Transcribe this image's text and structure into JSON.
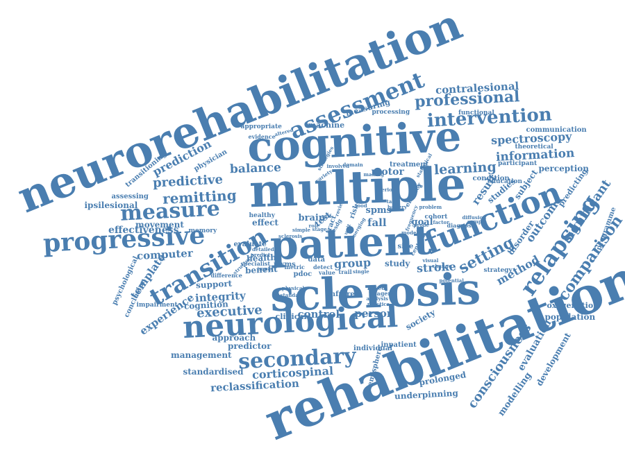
{
  "theme": {
    "word_color": "#4a7eb0",
    "background": "#ffffff"
  },
  "words": [
    "neurorehabilitation",
    "rehabilitation",
    "multiple",
    "sclerosis",
    "patient",
    "cognitive",
    "neurological",
    "function",
    "progressive",
    "transition",
    "secondary",
    "measure",
    "assessment",
    "intervention",
    "professional",
    "relapsing",
    "setting",
    "remitting",
    "predictive",
    "balance",
    "prediction",
    "learning",
    "information",
    "spectroscopy",
    "contralesional",
    "corticospinal",
    "reclassification",
    "executive",
    "group",
    "stroke",
    "comparison",
    "significant",
    "outcome",
    "result",
    "method",
    "consciousness",
    "evaluation",
    "development",
    "modelling",
    "population",
    "oxygenation",
    "experience",
    "template",
    "computer",
    "integrity",
    "support",
    "cognition",
    "health",
    "benefit",
    "effectiveness",
    "movement",
    "memory",
    "ipsilesional",
    "assessing",
    "transitioning",
    "physician",
    "machine",
    "measuring",
    "processing",
    "motor",
    "treatment",
    "brain",
    "study",
    "control",
    "person",
    "predictor",
    "approach",
    "management",
    "standardised",
    "individual",
    "inpatient",
    "prolonged",
    "underpinning",
    "society",
    "hemisphere",
    "perception",
    "communication",
    "functional",
    "theoretical",
    "participant",
    "education",
    "condition",
    "disorder",
    "studies",
    "subject",
    "predicting",
    "programme",
    "strategy",
    "psychological",
    "conclusion",
    "impairment",
    "evaluate",
    "specialist",
    "difference",
    "pwms",
    "metric",
    "data",
    "detect",
    "pdoc",
    "value",
    "trail",
    "infrared",
    "imagery",
    "based",
    "goal",
    "spms",
    "fall",
    "side",
    "clinical",
    "test",
    "effect",
    "healthy",
    "appropriate",
    "evidence",
    "tract",
    "risk",
    "review",
    "visual",
    "centred",
    "efficacy",
    "diagnosis",
    "cohort",
    "probe",
    "factor",
    "potential",
    "physical",
    "standard",
    "practice",
    "analysis",
    "single",
    "change",
    "structural",
    "variety",
    "making",
    "involved",
    "domain",
    "strategies",
    "statistical",
    "altered",
    "self",
    "unit",
    "esdg",
    "role",
    "emerging",
    "diffusion",
    "battery",
    "period",
    "sample",
    "problem",
    "model",
    "stage",
    "simple",
    "food",
    "task",
    "frequency",
    "impact",
    "predict",
    "detailed",
    "wide",
    "sclerosis"
  ]
}
